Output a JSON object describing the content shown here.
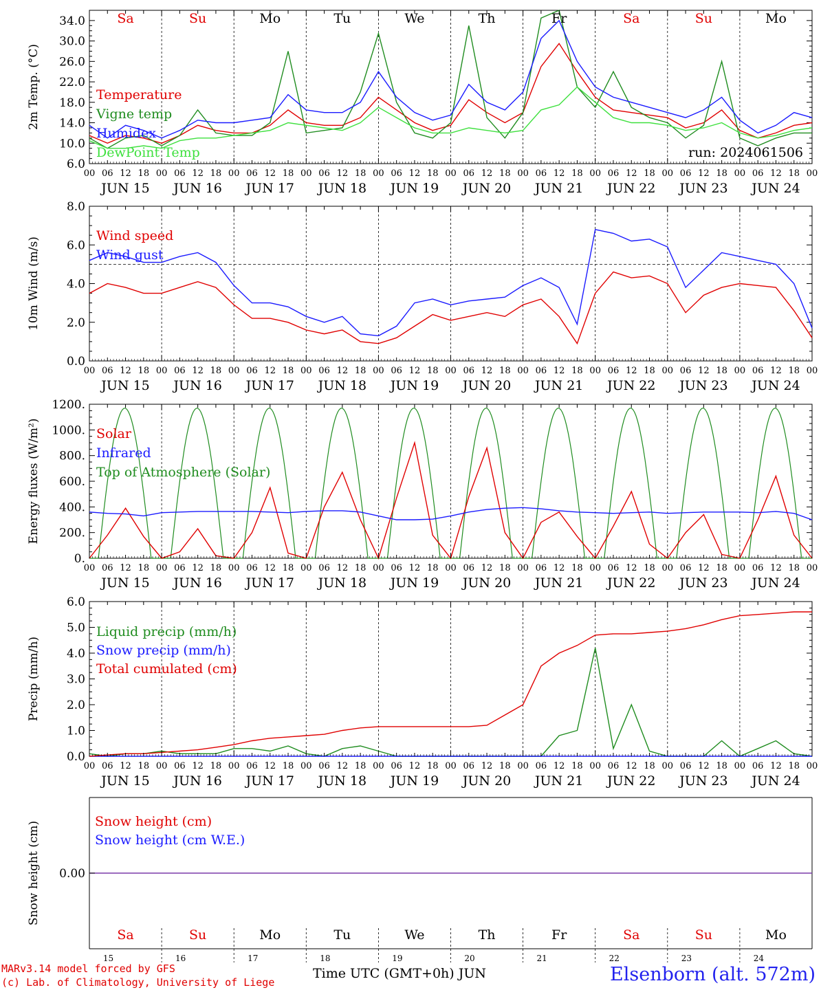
{
  "colors": {
    "red": "#e00000",
    "blue": "#1a1aff",
    "green": "#1f8c1f",
    "lime": "#3ee03e",
    "grid": "#000000",
    "purple": "#7a3aa8"
  },
  "days": {
    "weekday_labels": [
      "Sa",
      "Su",
      "Mo",
      "Tu",
      "We",
      "Th",
      "Fr",
      "Sa",
      "Su",
      "Mo"
    ],
    "weekday_colors": [
      "#e00000",
      "#e00000",
      "#000000",
      "#000000",
      "#000000",
      "#000000",
      "#000000",
      "#e00000",
      "#e00000",
      "#000000"
    ],
    "date_labels": [
      "JUN 15",
      "JUN 16",
      "JUN 17",
      "JUN 18",
      "JUN 19",
      "JUN 20",
      "JUN 21",
      "JUN 22",
      "JUN 23",
      "JUN 24"
    ],
    "day_numbers": [
      "15",
      "16",
      "17",
      "18",
      "19",
      "20",
      "21",
      "22",
      "23",
      "24"
    ],
    "hour_ticks": [
      "00",
      "06",
      "12",
      "18"
    ],
    "last_tick": "00"
  },
  "chart_data": [
    {
      "type": "line",
      "id": "temp",
      "ylabel": "2m Temp. (°C)",
      "ylim": [
        6,
        36
      ],
      "yticks": [
        "6.0",
        "10.0",
        "14.0",
        "18.0",
        "22.0",
        "26.0",
        "30.0",
        "34.0"
      ],
      "ytick_values": [
        6,
        10,
        14,
        18,
        22,
        26,
        30,
        34
      ],
      "x_hours_from_jun15_00": [
        0,
        6,
        12,
        18,
        24,
        30,
        36,
        42,
        48,
        54,
        60,
        66,
        72,
        78,
        84,
        90,
        96,
        102,
        108,
        114,
        120,
        126,
        132,
        138,
        144,
        150,
        156,
        162,
        168,
        174,
        180,
        186,
        192,
        198,
        204,
        210,
        216,
        222,
        228,
        234,
        240
      ],
      "legend": [
        "Temperature",
        "Vigne temp",
        "Humidex",
        "DewPoint Temp"
      ],
      "annotation": "run: 2024061506",
      "show_weekdays": true,
      "series": [
        {
          "name": "Temperature",
          "color": "#e00000",
          "values": [
            11.5,
            10.0,
            11.5,
            11.0,
            10.0,
            11.5,
            13.5,
            12.5,
            12.0,
            12.0,
            13.5,
            16.5,
            14.0,
            13.5,
            13.5,
            15.0,
            19.0,
            16.5,
            14.0,
            12.5,
            13.5,
            18.5,
            16.0,
            14.0,
            16.0,
            25.0,
            29.5,
            24.0,
            19.0,
            16.5,
            16.0,
            15.5,
            15.0,
            13.0,
            14.0,
            16.5,
            12.5,
            11.0,
            12.0,
            13.5,
            14.0
          ]
        },
        {
          "name": "Vigne temp",
          "color": "#1f8c1f",
          "values": [
            11.0,
            9.0,
            11.0,
            11.5,
            9.5,
            11.5,
            16.5,
            12.0,
            11.5,
            11.5,
            14.0,
            28.0,
            12.0,
            12.5,
            13.0,
            20.0,
            31.5,
            18.0,
            12.0,
            11.0,
            14.0,
            33.0,
            15.0,
            11.0,
            16.0,
            34.5,
            36.0,
            21.0,
            17.0,
            24.0,
            17.0,
            15.0,
            14.0,
            11.0,
            13.5,
            26.0,
            11.0,
            9.5,
            11.0,
            12.0,
            12.0
          ]
        },
        {
          "name": "Humidex",
          "color": "#1a1aff",
          "values": [
            13.5,
            11.0,
            13.5,
            12.5,
            11.0,
            12.5,
            14.5,
            14.0,
            14.0,
            14.5,
            15.0,
            19.5,
            16.5,
            16.0,
            16.0,
            18.0,
            24.0,
            19.0,
            16.0,
            14.5,
            15.5,
            21.5,
            18.0,
            16.5,
            20.0,
            30.5,
            34.0,
            26.0,
            21.0,
            19.0,
            18.0,
            17.0,
            16.0,
            15.0,
            16.5,
            19.0,
            14.5,
            12.0,
            13.5,
            16.0,
            15.0
          ]
        },
        {
          "name": "DewPoint Temp",
          "color": "#3ee03e",
          "values": [
            10.5,
            9.0,
            9.0,
            9.5,
            9.0,
            10.5,
            11.0,
            11.0,
            11.5,
            12.0,
            12.5,
            14.0,
            13.5,
            13.0,
            12.5,
            14.0,
            17.0,
            15.0,
            13.0,
            12.0,
            12.0,
            13.0,
            12.5,
            12.0,
            12.5,
            16.5,
            17.5,
            21.0,
            18.0,
            15.0,
            14.0,
            14.0,
            13.5,
            12.5,
            13.0,
            14.0,
            12.0,
            11.0,
            11.5,
            12.5,
            13.0
          ]
        }
      ]
    },
    {
      "type": "line",
      "id": "wind",
      "ylabel": "10m Wind (m/s)",
      "ylim": [
        0,
        8
      ],
      "yticks": [
        "0.0",
        "2.0",
        "4.0",
        "6.0",
        "8.0"
      ],
      "ytick_values": [
        0,
        2,
        4,
        6,
        8
      ],
      "dashed_line_at": 5,
      "x_hours_from_jun15_00": [
        0,
        6,
        12,
        18,
        24,
        30,
        36,
        42,
        48,
        54,
        60,
        66,
        72,
        78,
        84,
        90,
        96,
        102,
        108,
        114,
        120,
        126,
        132,
        138,
        144,
        150,
        156,
        162,
        168,
        174,
        180,
        186,
        192,
        198,
        204,
        210,
        216,
        222,
        228,
        234,
        240
      ],
      "legend": [
        "Wind speed",
        "Wind gust"
      ],
      "series": [
        {
          "name": "Wind speed",
          "color": "#e00000",
          "values": [
            3.5,
            4.0,
            3.8,
            3.5,
            3.5,
            3.8,
            4.1,
            3.8,
            2.9,
            2.2,
            2.2,
            2.0,
            1.6,
            1.4,
            1.6,
            1.0,
            0.9,
            1.2,
            1.8,
            2.4,
            2.1,
            2.3,
            2.5,
            2.3,
            2.9,
            3.2,
            2.3,
            0.9,
            3.5,
            4.6,
            4.3,
            4.4,
            4.0,
            2.5,
            3.4,
            3.8,
            4.0,
            3.9,
            3.8,
            2.6,
            1.2
          ]
        },
        {
          "name": "Wind gust",
          "color": "#1a1aff",
          "values": [
            5.2,
            5.6,
            5.4,
            5.1,
            5.1,
            5.4,
            5.6,
            5.1,
            3.9,
            3.0,
            3.0,
            2.8,
            2.3,
            2.0,
            2.3,
            1.4,
            1.3,
            1.8,
            3.0,
            3.2,
            2.9,
            3.1,
            3.2,
            3.3,
            3.9,
            4.3,
            3.8,
            1.9,
            6.8,
            6.6,
            6.2,
            6.3,
            5.9,
            3.8,
            4.7,
            5.6,
            5.4,
            5.2,
            5.0,
            4.0,
            1.7
          ]
        }
      ]
    },
    {
      "type": "line",
      "id": "energy",
      "ylabel": "Energy fluxes (W/m²)",
      "ylim": [
        0,
        1200
      ],
      "yticks": [
        "0.",
        "200.",
        "400.",
        "600.",
        "800.",
        "1000.",
        "1200."
      ],
      "ytick_values": [
        0,
        200,
        400,
        600,
        800,
        1000,
        1200
      ],
      "x_hours_from_jun15_00": [
        0,
        6,
        12,
        18,
        24,
        30,
        36,
        42,
        48,
        54,
        60,
        66,
        72,
        78,
        84,
        90,
        96,
        102,
        108,
        114,
        120,
        126,
        132,
        138,
        144,
        150,
        156,
        162,
        168,
        174,
        180,
        186,
        192,
        198,
        204,
        210,
        216,
        222,
        228,
        234,
        240
      ],
      "legend": [
        "Solar",
        "Infrared",
        "Top of Atmosphere (Solar)"
      ],
      "toa_peak": 1170,
      "series": [
        {
          "name": "Solar",
          "color": "#e00000",
          "values": [
            0,
            180,
            390,
            170,
            0,
            50,
            230,
            20,
            0,
            200,
            550,
            40,
            0,
            400,
            670,
            300,
            0,
            470,
            900,
            180,
            0,
            480,
            860,
            200,
            0,
            280,
            360,
            170,
            0,
            250,
            520,
            110,
            0,
            200,
            340,
            30,
            0,
            300,
            640,
            180,
            0
          ]
        },
        {
          "name": "Infrared",
          "color": "#1a1aff",
          "values": [
            360,
            350,
            345,
            330,
            355,
            360,
            365,
            365,
            365,
            365,
            360,
            355,
            365,
            370,
            370,
            360,
            330,
            300,
            300,
            305,
            330,
            360,
            380,
            390,
            395,
            385,
            370,
            360,
            355,
            350,
            355,
            360,
            350,
            355,
            360,
            360,
            360,
            355,
            365,
            350,
            300
          ]
        }
      ]
    },
    {
      "type": "line",
      "id": "precip",
      "ylabel": "Precip (mm/h)",
      "ylim": [
        0,
        6
      ],
      "yticks": [
        "0.0",
        "1.0",
        "2.0",
        "3.0",
        "4.0",
        "5.0",
        "6.0"
      ],
      "ytick_values": [
        0,
        1,
        2,
        3,
        4,
        5,
        6
      ],
      "x_hours_from_jun15_00": [
        0,
        6,
        12,
        18,
        24,
        30,
        36,
        42,
        48,
        54,
        60,
        66,
        72,
        78,
        84,
        90,
        96,
        102,
        108,
        114,
        120,
        126,
        132,
        138,
        144,
        150,
        156,
        162,
        168,
        174,
        180,
        186,
        192,
        198,
        204,
        210,
        216,
        222,
        228,
        234,
        240
      ],
      "legend": [
        "Liquid precip (mm/h)",
        "Snow precip (mm/h)",
        "Total cumulated (cm)"
      ],
      "series": [
        {
          "name": "Liquid precip (mm/h)",
          "color": "#1f8c1f",
          "values": [
            0.1,
            0.0,
            0.1,
            0.1,
            0.2,
            0.1,
            0.1,
            0.1,
            0.3,
            0.3,
            0.2,
            0.4,
            0.1,
            0.0,
            0.3,
            0.4,
            0.2,
            0.0,
            0.0,
            0.0,
            0.0,
            0.0,
            0.0,
            0.0,
            0.0,
            0.0,
            0.8,
            1.0,
            4.2,
            0.3,
            2.0,
            0.2,
            0.0,
            0.0,
            0.0,
            0.6,
            0.0,
            0.3,
            0.6,
            0.1,
            0.0
          ]
        },
        {
          "name": "Snow precip (mm/h)",
          "color": "#1a1aff",
          "values": [
            0,
            0,
            0,
            0,
            0,
            0,
            0,
            0,
            0,
            0,
            0,
            0,
            0,
            0,
            0,
            0,
            0,
            0,
            0,
            0,
            0,
            0,
            0,
            0,
            0,
            0,
            0,
            0,
            0,
            0,
            0,
            0,
            0,
            0,
            0,
            0,
            0,
            0,
            0,
            0,
            0
          ]
        },
        {
          "name": "Total cumulated (cm)",
          "color": "#e00000",
          "values": [
            0.0,
            0.05,
            0.1,
            0.1,
            0.15,
            0.2,
            0.25,
            0.35,
            0.45,
            0.6,
            0.7,
            0.75,
            0.8,
            0.85,
            1.0,
            1.1,
            1.15,
            1.15,
            1.15,
            1.15,
            1.15,
            1.15,
            1.2,
            1.6,
            2.0,
            3.5,
            4.0,
            4.3,
            4.7,
            4.75,
            4.75,
            4.8,
            4.85,
            4.95,
            5.1,
            5.3,
            5.45,
            5.5,
            5.55,
            5.6,
            5.6
          ]
        }
      ]
    },
    {
      "type": "line",
      "id": "snow",
      "ylabel": "Snow height (cm)",
      "yticks": [
        "0.00"
      ],
      "legend": [
        "Snow height (cm)",
        "Snow height (cm W.E.)"
      ],
      "show_weekdays_bottom": true,
      "series": [
        {
          "name": "Snow height (cm)",
          "color": "#e00000",
          "values": [
            0,
            0
          ]
        },
        {
          "name": "Snow height (cm W.E.)",
          "color": "#1a1aff",
          "values": [
            0,
            0
          ]
        }
      ]
    }
  ],
  "footer": {
    "x_title": "Time UTC (GMT+0h) JUN",
    "credit_line1": "MARv3.14 model forced by GFS",
    "credit_line2": "(c) Lab. of Climatology, University of Liege",
    "station": "Elsenborn (alt. 572m)"
  }
}
